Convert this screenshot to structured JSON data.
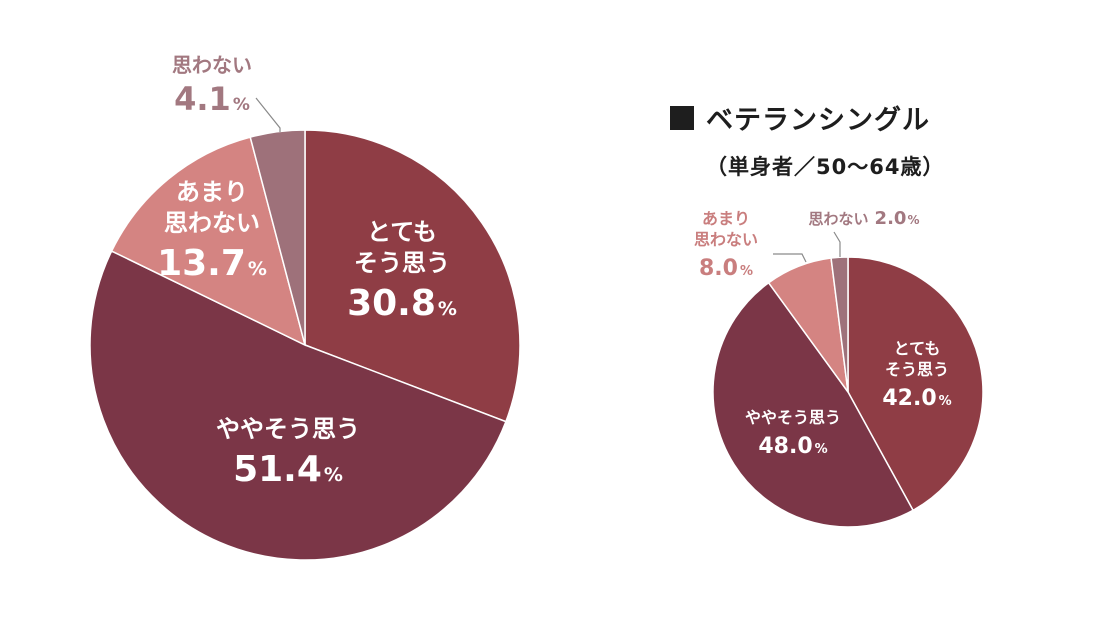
{
  "colors": {
    "totemo": "#8f3d45",
    "yaya": "#7b3647",
    "amari": "#d48482",
    "omowanai": "#9e717a",
    "label_white": "#ffffff",
    "label_outside_amari": "#c97e7e",
    "label_outside_omowanai": "#a27880",
    "leader_line": "#8a8a8a",
    "legend": "#1e1e1e"
  },
  "legend": {
    "square_icon": "black-square-icon",
    "title": "ベテランシングル",
    "subtitle": "（単身者／50〜64歳）"
  },
  "chart_data": [
    {
      "type": "pie",
      "title": "",
      "start_angle_deg": 0,
      "direction": "clockwise",
      "slices": [
        {
          "key": "totemo",
          "label_lines": [
            "とても",
            "そう思う"
          ],
          "value": 30.8,
          "value_text": "30.8",
          "unit": "%",
          "label_position": "inside"
        },
        {
          "key": "yaya",
          "label_lines": [
            "ややそう思う"
          ],
          "value": 51.4,
          "value_text": "51.4",
          "unit": "%",
          "label_position": "inside"
        },
        {
          "key": "amari",
          "label_lines": [
            "あまり",
            "思わない"
          ],
          "value": 13.7,
          "value_text": "13.7",
          "unit": "%",
          "label_position": "inside"
        },
        {
          "key": "omowanai",
          "label_lines": [
            "思わない"
          ],
          "value": 4.1,
          "value_text": "4.1",
          "unit": "%",
          "label_position": "outside-top-left"
        }
      ]
    },
    {
      "type": "pie",
      "title": "ベテランシングル（単身者／50〜64歳）",
      "start_angle_deg": 0,
      "direction": "clockwise",
      "slices": [
        {
          "key": "totemo",
          "label_lines": [
            "とても",
            "そう思う"
          ],
          "value": 42.0,
          "value_text": "42.0",
          "unit": "%",
          "label_position": "inside"
        },
        {
          "key": "yaya",
          "label_lines": [
            "ややそう思う"
          ],
          "value": 48.0,
          "value_text": "48.0",
          "unit": "%",
          "label_position": "inside"
        },
        {
          "key": "amari",
          "label_lines": [
            "あまり",
            "思わない"
          ],
          "value": 8.0,
          "value_text": "8.0",
          "unit": "%",
          "label_position": "outside-top-left"
        },
        {
          "key": "omowanai",
          "label_lines": [
            "思わない"
          ],
          "value": 2.0,
          "value_text": "2.0",
          "unit": "%",
          "label_position": "outside-top-right"
        }
      ]
    }
  ]
}
